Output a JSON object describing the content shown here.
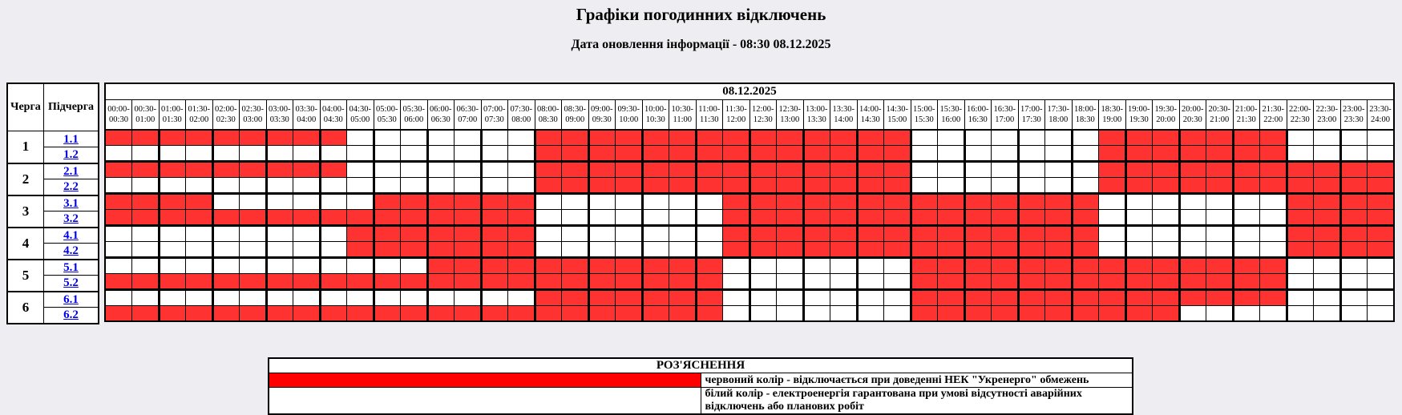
{
  "header": {
    "title": "Графіки погодинних відключень",
    "subtitle": "Дата оновлення інформації - 08:30 08.12.2025"
  },
  "schedule": {
    "date": "08.12.2025",
    "queue_header": "Черга",
    "subqueue_header": "Підчерга",
    "times": [
      "00:00",
      "00:30",
      "01:00",
      "01:30",
      "02:00",
      "02:30",
      "03:00",
      "03:30",
      "04:00",
      "04:30",
      "05:00",
      "05:30",
      "06:00",
      "06:30",
      "07:00",
      "07:30",
      "08:00",
      "08:30",
      "09:00",
      "09:30",
      "10:00",
      "10:30",
      "11:00",
      "11:30",
      "12:00",
      "12:30",
      "13:00",
      "13:30",
      "14:00",
      "14:30",
      "15:00",
      "15:30",
      "16:00",
      "16:30",
      "17:00",
      "17:30",
      "18:00",
      "18:30",
      "19:00",
      "19:30",
      "20:00",
      "20:30",
      "21:00",
      "21:30",
      "22:00",
      "22:30",
      "23:00",
      "23:30",
      "24:00"
    ],
    "queues": [
      {
        "number": "1",
        "subqueues": [
          {
            "label": "1.1",
            "pattern": "111111111000000011111111111111000000011111110000"
          },
          {
            "label": "1.2",
            "pattern": "000000000000000011111111111111000000011111110000"
          }
        ]
      },
      {
        "number": "2",
        "subqueues": [
          {
            "label": "2.1",
            "pattern": "111111111000000011111111111111000000011111111111"
          },
          {
            "label": "2.2",
            "pattern": "000000000000000011111111111111000000011111111111"
          }
        ]
      },
      {
        "number": "3",
        "subqueues": [
          {
            "label": "3.1",
            "pattern": "111100000011111100000001111111111111100000001111"
          },
          {
            "label": "3.2",
            "pattern": "111111111111111100000001111111111111100000001111"
          }
        ]
      },
      {
        "number": "4",
        "subqueues": [
          {
            "label": "4.1",
            "pattern": "000000000111111100000001111111111111100000001111"
          },
          {
            "label": "4.2",
            "pattern": "000000000111111100000001111111111111100000001111"
          }
        ]
      },
      {
        "number": "5",
        "subqueues": [
          {
            "label": "5.1",
            "pattern": "000000000000111111111110000000111111111111110000"
          },
          {
            "label": "5.2",
            "pattern": "111111111111111111111110000000111111111111110000"
          }
        ]
      },
      {
        "number": "6",
        "subqueues": [
          {
            "label": "6.1",
            "pattern": "000000000000000011111110000000111111111111110000"
          },
          {
            "label": "6.2",
            "pattern": "111111111111111111111110000000111111111100000000"
          }
        ]
      }
    ]
  },
  "legend": {
    "title": "РОЗ'ЯСНЕННЯ",
    "rows": [
      {
        "swatch": "#FF0000",
        "text": "червоний колір - відключається при доведенні НЕК \"Укренерго\" обмежень"
      },
      {
        "swatch": "#FFFFFF",
        "text": "білий колір - електроенергія гарантована при умові відсутності аварійних відключень або планових робіт"
      }
    ]
  },
  "colors": {
    "outage_red": "#FF3232",
    "legend_red": "#FF0000",
    "available_white": "#FFFFFF",
    "link_blue": "#0000EE",
    "page_background": "#EDEDF2"
  }
}
